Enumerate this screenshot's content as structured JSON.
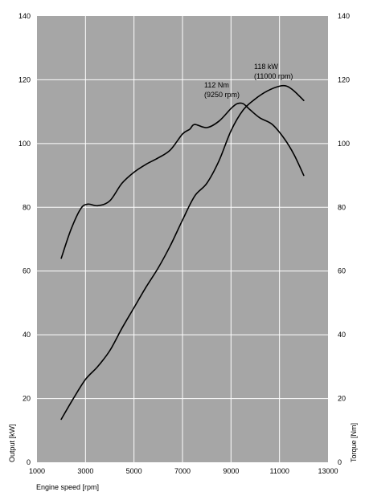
{
  "chart_data": {
    "type": "line",
    "title": "",
    "xlabel": "Engine speed [rpm]",
    "ylabel_left": "Output [kW]",
    "ylabel_right": "Torque [Nm]",
    "xlim": [
      1000,
      13000
    ],
    "ylim_left": [
      0,
      140
    ],
    "ylim_right": [
      0,
      140
    ],
    "x_ticks": [
      1000,
      3000,
      5000,
      7000,
      9000,
      11000,
      13000
    ],
    "y_ticks_left": [
      0,
      20,
      40,
      60,
      80,
      100,
      120,
      140
    ],
    "y_ticks_right": [
      0,
      20,
      40,
      60,
      80,
      100,
      120,
      140
    ],
    "grid": true,
    "background_color": "#a6a6a6",
    "line_color": "#000000",
    "series": [
      {
        "axis": "left",
        "points": [
          [
            2000,
            13.5
          ],
          [
            2500,
            20
          ],
          [
            3000,
            26
          ],
          [
            3500,
            30
          ],
          [
            4000,
            35
          ],
          [
            4500,
            42
          ],
          [
            5000,
            48.5
          ],
          [
            5500,
            55
          ],
          [
            6000,
            61
          ],
          [
            6500,
            68
          ],
          [
            7000,
            76
          ],
          [
            7500,
            83.5
          ],
          [
            8000,
            87.5
          ],
          [
            8500,
            94.5
          ],
          [
            9000,
            104
          ],
          [
            9500,
            110.5
          ],
          [
            10000,
            114
          ],
          [
            10500,
            116.5
          ],
          [
            11000,
            118
          ],
          [
            11300,
            118
          ],
          [
            11600,
            116.5
          ],
          [
            12000,
            113.5
          ]
        ]
      },
      {
        "axis": "right",
        "points": [
          [
            2000,
            64
          ],
          [
            2400,
            73
          ],
          [
            2800,
            79.5
          ],
          [
            3100,
            81
          ],
          [
            3500,
            80.5
          ],
          [
            4000,
            82
          ],
          [
            4500,
            87.5
          ],
          [
            5000,
            91
          ],
          [
            5500,
            93.5
          ],
          [
            6000,
            95.5
          ],
          [
            6500,
            98
          ],
          [
            7000,
            103
          ],
          [
            7300,
            104.5
          ],
          [
            7500,
            106
          ],
          [
            8000,
            105
          ],
          [
            8500,
            107
          ],
          [
            9000,
            111
          ],
          [
            9250,
            112.5
          ],
          [
            9500,
            112.5
          ],
          [
            9800,
            110.5
          ],
          [
            10200,
            108
          ],
          [
            10700,
            106
          ],
          [
            11200,
            101.5
          ],
          [
            11600,
            96.5
          ],
          [
            12000,
            90
          ]
        ]
      }
    ],
    "annotations": [
      {
        "text_line1": "112 Nm",
        "text_line2": "(9250 rpm)",
        "x": 9250,
        "y": 112.5,
        "axis": "right"
      },
      {
        "text_line1": "118 kW",
        "text_line2": "(11000 rpm)",
        "x": 11000,
        "y": 118,
        "axis": "left"
      }
    ]
  }
}
